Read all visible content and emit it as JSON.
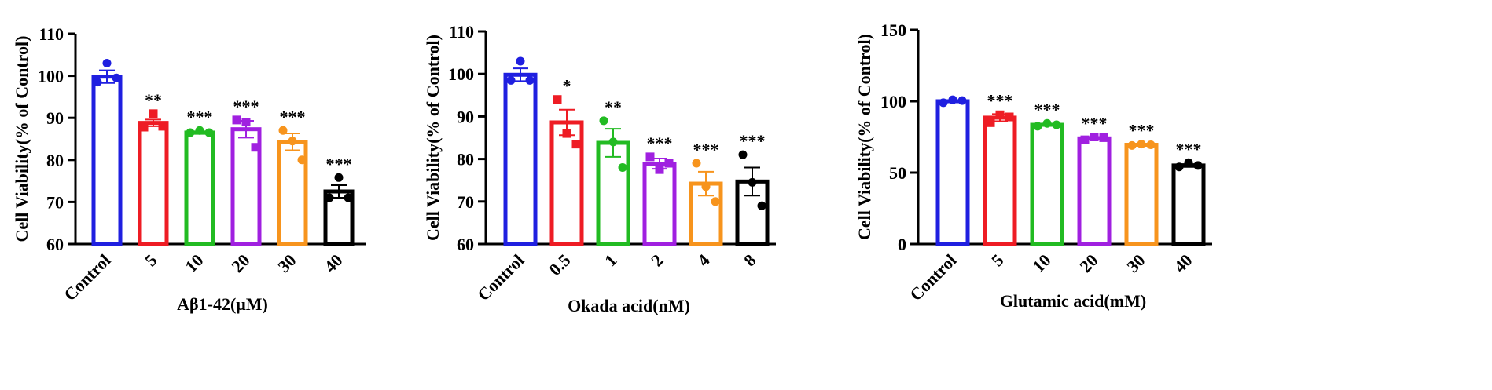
{
  "chart_data": [
    {
      "type": "bar",
      "ylabel": "Cell Viability(% of Control)",
      "xlabel": "Aβ1-42(μM)",
      "categories": [
        "Control",
        "5",
        "10",
        "20",
        "30",
        "40"
      ],
      "values": [
        99.8,
        88.8,
        86.5,
        87.3,
        84.3,
        72.5
      ],
      "errors": [
        1.5,
        0.8,
        0.3,
        2.0,
        2.0,
        1.5
      ],
      "points": [
        [
          98.5,
          103.0,
          99.5
        ],
        [
          87.8,
          91.0,
          88.0
        ],
        [
          86.5,
          87.0,
          86.5
        ],
        [
          89.5,
          89.0,
          83.0
        ],
        [
          87.0,
          84.5,
          80.0
        ],
        [
          71.0,
          75.8,
          71.0
        ]
      ],
      "significance": [
        "",
        "**",
        "***",
        "***",
        "***",
        "***"
      ],
      "colors": [
        "#1f1fe0",
        "#ee1c24",
        "#22bb22",
        "#a020e0",
        "#f7941d",
        "#000000"
      ],
      "ylim": [
        60,
        110
      ],
      "yticks": [
        60,
        70,
        80,
        90,
        100,
        110
      ],
      "grid": false
    },
    {
      "type": "bar",
      "ylabel": "Cell Viability(% of Control)",
      "xlabel": "Okada acid(nM)",
      "categories": [
        "Control",
        "0.5",
        "1",
        "2",
        "4",
        "8"
      ],
      "values": [
        99.8,
        88.6,
        83.8,
        78.9,
        74.2,
        74.7
      ],
      "errors": [
        1.5,
        3.0,
        3.3,
        1.2,
        2.8,
        3.3
      ],
      "points": [
        [
          98.5,
          103.0,
          98.5
        ],
        [
          94.0,
          86.0,
          83.5
        ],
        [
          89.0,
          84.0,
          78.0
        ],
        [
          80.5,
          77.5,
          79.0
        ],
        [
          79.0,
          73.5,
          70.0
        ],
        [
          81.0,
          74.5,
          69.0
        ]
      ],
      "significance": [
        "",
        "*",
        "**",
        "***",
        "***",
        "***"
      ],
      "colors": [
        "#1f1fe0",
        "#ee1c24",
        "#22bb22",
        "#a020e0",
        "#f7941d",
        "#000000"
      ],
      "ylim": [
        60,
        110
      ],
      "yticks": [
        60,
        70,
        80,
        90,
        100,
        110
      ],
      "grid": false
    },
    {
      "type": "bar",
      "ylabel": "Cell Viability(% of Control)",
      "xlabel": "Glutamic acid(mM)",
      "categories": [
        "Control",
        "5",
        "10",
        "20",
        "30",
        "40"
      ],
      "values": [
        100,
        88.5,
        83.5,
        74.0,
        69.5,
        55.0
      ],
      "errors": [
        0.8,
        2.5,
        0.8,
        1.0,
        0.5,
        1.0
      ],
      "points": [
        [
          99.0,
          101.0,
          100.5
        ],
        [
          85.0,
          90.5,
          89.0
        ],
        [
          82.5,
          84.5,
          83.5
        ],
        [
          73.0,
          75.0,
          74.5
        ],
        [
          69.0,
          70.0,
          69.5
        ],
        [
          54.0,
          57.0,
          55.0
        ]
      ],
      "significance": [
        "",
        "***",
        "***",
        "***",
        "***",
        "***"
      ],
      "colors": [
        "#1f1fe0",
        "#ee1c24",
        "#22bb22",
        "#a020e0",
        "#f7941d",
        "#000000"
      ],
      "ylim": [
        0,
        150
      ],
      "yticks": [
        0,
        50,
        100,
        150
      ],
      "grid": false
    }
  ]
}
